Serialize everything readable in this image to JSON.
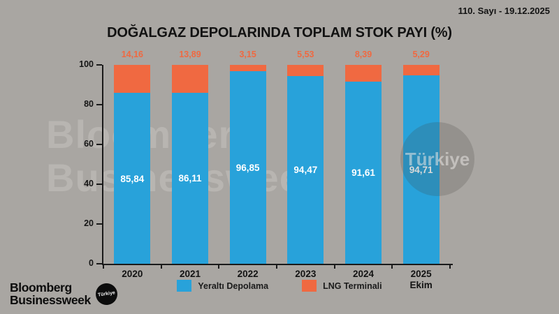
{
  "header": {
    "issue_date": "110. Sayı - 19.12.2025"
  },
  "title": "DOĞALGAZ DEPOLARINDA TOPLAM STOK PAYI (%)",
  "chart_data": {
    "type": "bar",
    "stacked": true,
    "title": "DOĞALGAZ DEPOLARINDA TOPLAM STOK PAYI (%)",
    "categories": [
      "2020",
      "2021",
      "2022",
      "2023",
      "2024",
      "2025"
    ],
    "category_sublabels": [
      "",
      "",
      "",
      "",
      "",
      "Ekim"
    ],
    "series": [
      {
        "name": "Yeraltı Depolama",
        "color": "#28a2da",
        "values": [
          85.84,
          86.11,
          96.85,
          94.47,
          91.61,
          94.71
        ],
        "labels": [
          "85,84",
          "86,11",
          "96,85",
          "94,47",
          "91,61",
          "94,71"
        ],
        "label_color": "#ffffff",
        "label_position": "inside-center"
      },
      {
        "name": "LNG Terminali",
        "color": "#f06941",
        "values": [
          14.16,
          13.89,
          3.15,
          5.53,
          8.39,
          5.29
        ],
        "labels": [
          "14,16",
          "13,89",
          "3,15",
          "5,53",
          "8,39",
          "5,29"
        ],
        "label_color": "#f06941",
        "label_position": "above-bar"
      }
    ],
    "xlabel": "",
    "ylabel": "",
    "ylim": [
      0,
      100
    ],
    "yticks": [
      0,
      20,
      40,
      60,
      80,
      100
    ],
    "grid": false,
    "legend_position": "bottom"
  },
  "legend": {
    "items": [
      {
        "label": "Yeraltı Depolama",
        "color": "#28a2da"
      },
      {
        "label": "LNG Terminali",
        "color": "#f06941"
      }
    ]
  },
  "watermark": {
    "line1": "Bloomberg",
    "line2": "Businessweek",
    "circle_text": "Türkiye"
  },
  "footer": {
    "logo_line1": "Bloomberg",
    "logo_line2": "Businessweek",
    "badge_text": "Türkiye"
  },
  "colors": {
    "background": "#a9a6a2",
    "blue": "#28a2da",
    "orange": "#f06941",
    "axis": "#1a1a1a"
  }
}
